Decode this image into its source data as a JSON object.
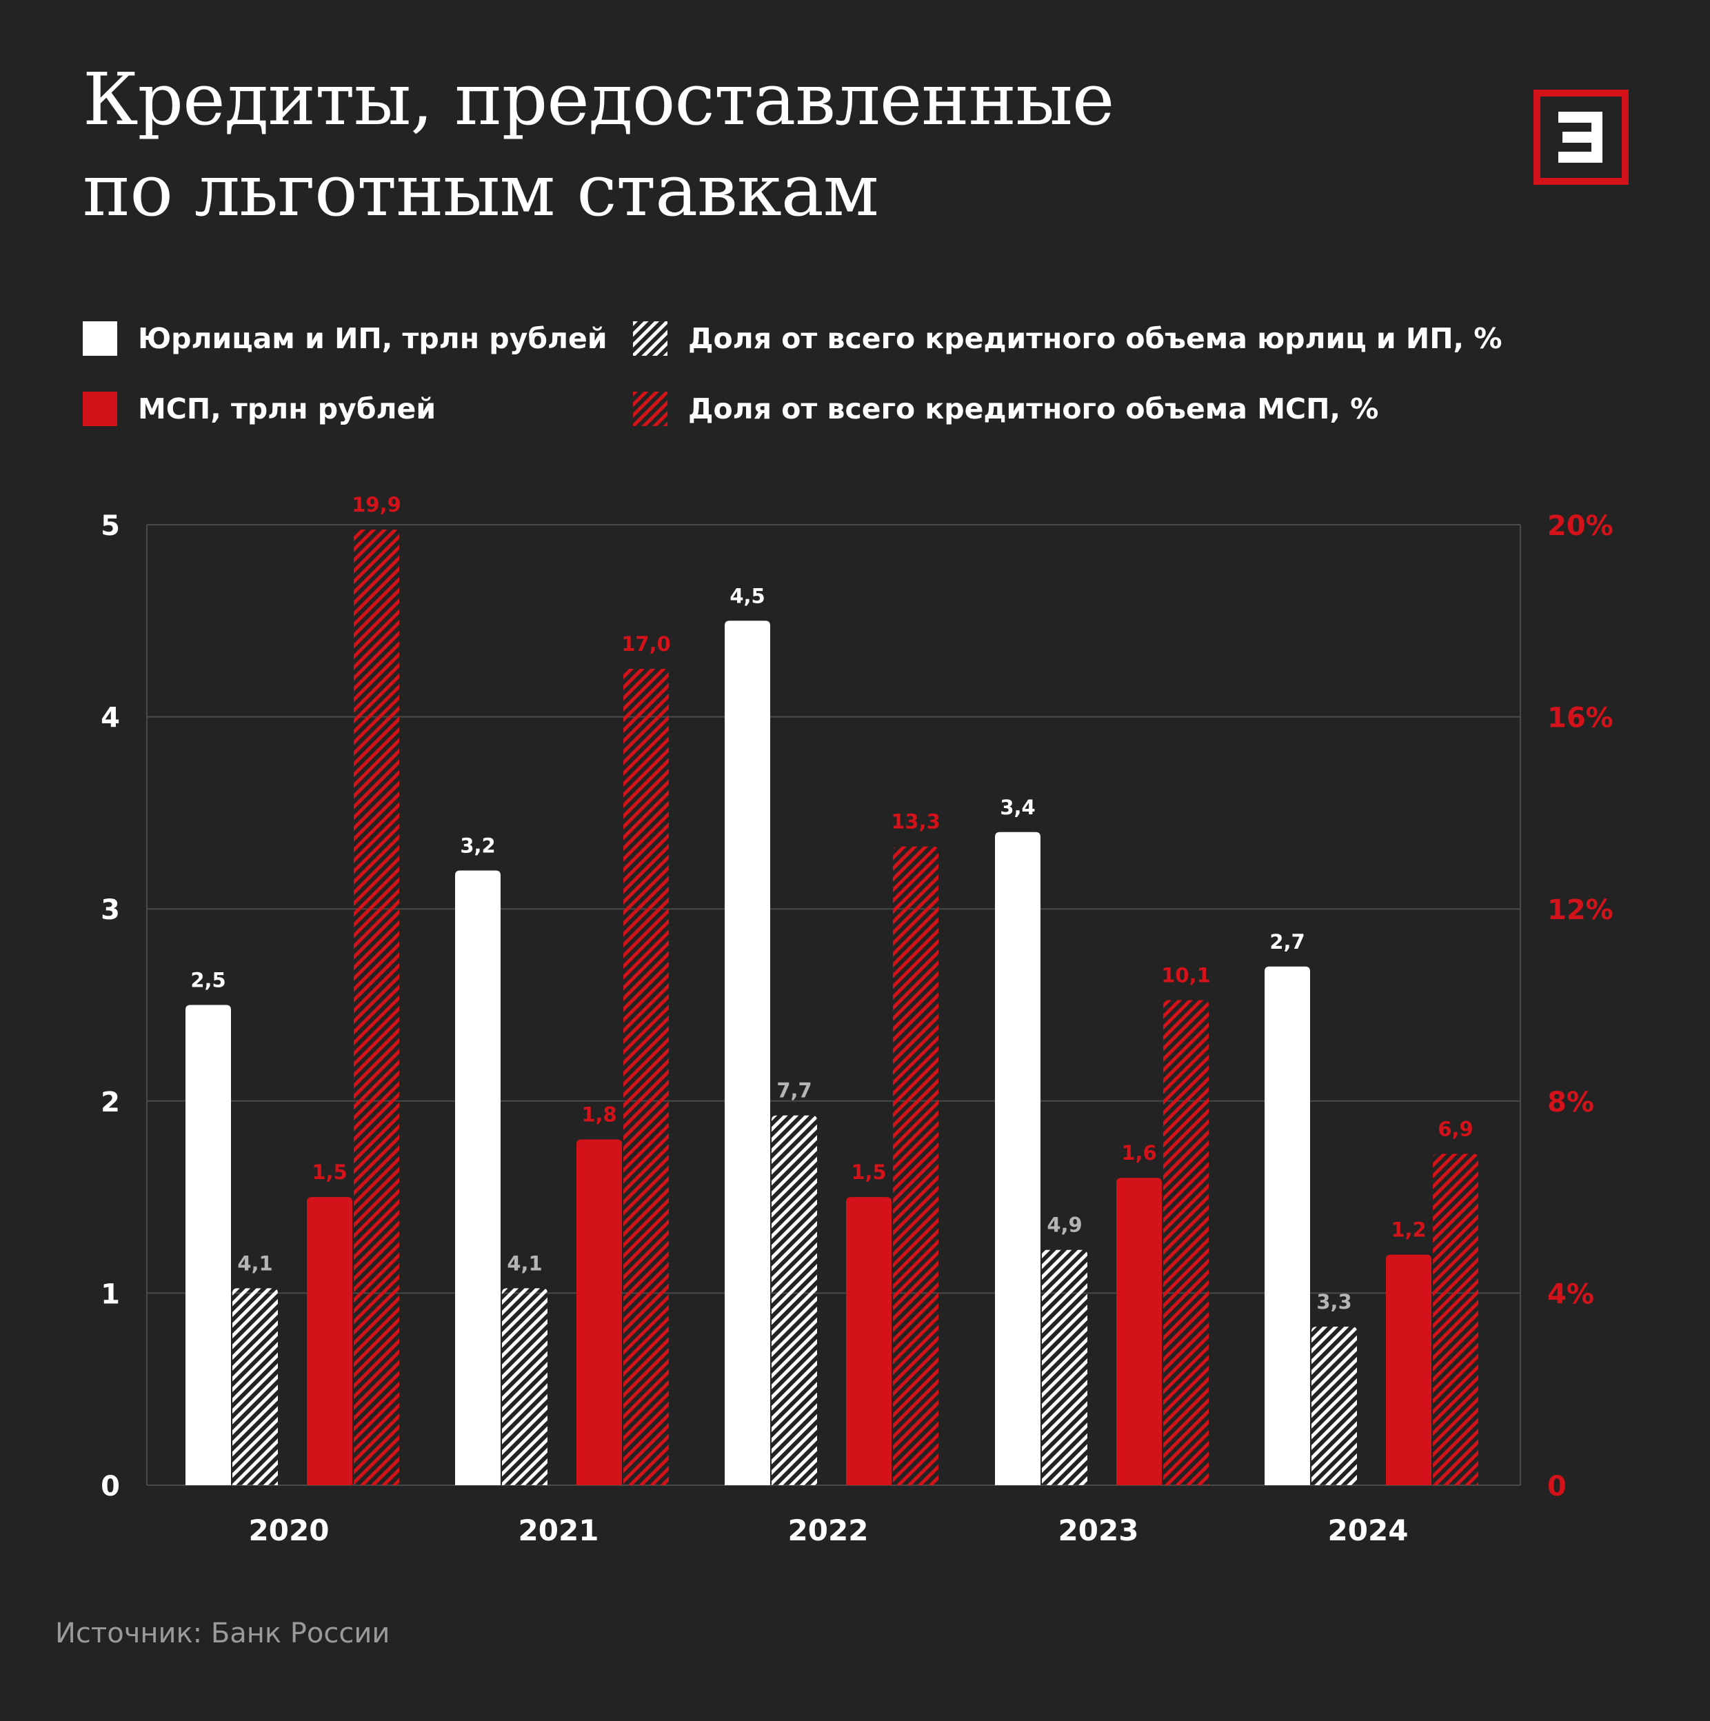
{
  "title": "Кредиты, предоставленные\nпо льготным ставкам",
  "logo_icon": "letter-e-logo-icon",
  "colors": {
    "background": "#232323",
    "white_series": "#ffffff",
    "red_series": "#d4121a",
    "grid": "#4a4a4a",
    "label_gray": "#b5b5b5",
    "axis_red": "#d4121a"
  },
  "legend": [
    {
      "label": "Юрлицам и ИП, трлн рублей",
      "style": "solid-white"
    },
    {
      "label": "Доля от всего кредитного объема юрлиц и ИП, %",
      "style": "hatch-white"
    },
    {
      "label": "МСП, трлн рублей",
      "style": "solid-red"
    },
    {
      "label": "Доля от всего кредитного объема МСП, %",
      "style": "hatch-red"
    }
  ],
  "source": "Источник: Банк России",
  "chart_data": {
    "type": "bar",
    "categories": [
      "2020",
      "2021",
      "2022",
      "2023",
      "2024"
    ],
    "series": [
      {
        "name": "Юрлицам и ИП, трлн рублей",
        "axis": "left",
        "values": [
          2.5,
          3.2,
          4.5,
          3.4,
          2.7
        ],
        "value_labels": [
          "2,5",
          "3,2",
          "4,5",
          "3,4",
          "2,7"
        ]
      },
      {
        "name": "Доля от всего кредитного объема юрлиц и ИП, %",
        "axis": "right",
        "values": [
          4.1,
          4.1,
          7.7,
          4.9,
          3.3
        ],
        "value_labels": [
          "4,1",
          "4,1",
          "7,7",
          "4,9",
          "3,3"
        ]
      },
      {
        "name": "МСП, трлн рублей",
        "axis": "left",
        "values": [
          1.5,
          1.8,
          1.5,
          1.6,
          1.2
        ],
        "value_labels": [
          "1,5",
          "1,8",
          "1,5",
          "1,6",
          "1,2"
        ]
      },
      {
        "name": "Доля от всего кредитного объема МСП, %",
        "axis": "right",
        "values": [
          19.9,
          17.0,
          13.3,
          10.1,
          6.9
        ],
        "value_labels": [
          "19,9",
          "17,0",
          "13,3",
          "10,1",
          "6,9"
        ]
      }
    ],
    "y_left": {
      "min": 0,
      "max": 5,
      "ticks": [
        "0",
        "1",
        "2",
        "3",
        "4",
        "5"
      ]
    },
    "y_right": {
      "min": 0,
      "max": 20,
      "ticks": [
        "0",
        "4%",
        "8%",
        "12%",
        "16%",
        "20%"
      ]
    },
    "grid": true,
    "legend_position": "top"
  }
}
